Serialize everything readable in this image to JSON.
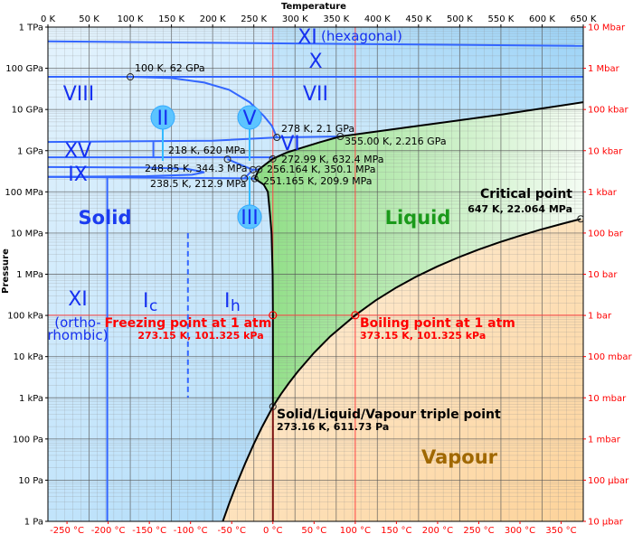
{
  "chart_data": {
    "type": "line",
    "title": "",
    "xlabel": "Temperature",
    "ylabel": "Pressure",
    "x_unit": "K",
    "xlim": [
      0,
      650
    ],
    "ylim_pa": [
      1,
      1000000000000.0
    ],
    "y_scale": "log",
    "grid": true,
    "top_ticks": [
      "0 K",
      "50 K",
      "100 K",
      "150 K",
      "200 K",
      "250 K",
      "300 K",
      "350 K",
      "400 K",
      "450 K",
      "500 K",
      "550 K",
      "600 K",
      "650 K"
    ],
    "top_tick_values": [
      0,
      50,
      100,
      150,
      200,
      250,
      300,
      350,
      400,
      450,
      500,
      550,
      600,
      650
    ],
    "bottom_ticks": [
      "-250 °C",
      "-200 °C",
      "-150 °C",
      "-100 °C",
      "-50 °C",
      "0 °C",
      "50 °C",
      "100 °C",
      "150 °C",
      "200 °C",
      "250 °C",
      "300 °C",
      "350 °C"
    ],
    "bottom_tick_values_c": [
      -250,
      -200,
      -150,
      -100,
      -50,
      0,
      50,
      100,
      150,
      200,
      250,
      300,
      350
    ],
    "left_ticks": [
      "1 Pa",
      "10 Pa",
      "100 Pa",
      "1 kPa",
      "10 kPa",
      "100 kPa",
      "1 MPa",
      "10 MPa",
      "100 MPa",
      "1 GPa",
      "10 GPa",
      "100 GPa",
      "1 TPa"
    ],
    "right_ticks": [
      "10 µbar",
      "100 µbar",
      "1 mbar",
      "10 mbar",
      "100 mbar",
      "1 bar",
      "10 bar",
      "100 bar",
      "1 kbar",
      "10 kbar",
      "100 kbar",
      "1 Mbar",
      "10 Mbar"
    ],
    "curves": {
      "vaporization": [
        [
          273.16,
          611.73
        ],
        [
          283,
          1228
        ],
        [
          293,
          2339
        ],
        [
          303,
          4246
        ],
        [
          323,
          12350
        ],
        [
          343,
          31200
        ],
        [
          373.15,
          101325
        ],
        [
          398,
          232000
        ],
        [
          423,
          476000
        ],
        [
          448,
          892000
        ],
        [
          473,
          1555000
        ],
        [
          498,
          2548000
        ],
        [
          523,
          3977000
        ],
        [
          548,
          5942000
        ],
        [
          573,
          8588000
        ],
        [
          598,
          12060000
        ],
        [
          623,
          16530000
        ],
        [
          647,
          22064000
        ]
      ],
      "sublimation": [
        [
          212.4,
          1
        ],
        [
          220,
          2.7
        ],
        [
          230,
          8.9
        ],
        [
          240,
          27
        ],
        [
          250,
          76
        ],
        [
          260,
          196
        ],
        [
          273.16,
          611.73
        ]
      ],
      "melting_ih": [
        [
          273.16,
          611.73
        ],
        [
          273.15,
          100000
        ],
        [
          272.8,
          1000000
        ],
        [
          271.5,
          10000000
        ],
        [
          269.5,
          30000000
        ],
        [
          267,
          100000000
        ],
        [
          262,
          150000000
        ],
        [
          251.165,
          209900000
        ]
      ],
      "melting_high": [
        [
          251.165,
          209900000
        ],
        [
          256.164,
          350100000
        ],
        [
          272.99,
          632400000
        ],
        [
          290,
          900000000
        ],
        [
          310,
          1200000000
        ],
        [
          330,
          1600000000
        ],
        [
          355,
          2216000000
        ],
        [
          450,
          4000000000
        ],
        [
          550,
          7500000000
        ],
        [
          650,
          15000000000
        ]
      ],
      "viii_vii": [
        [
          100,
          62000000000
        ],
        [
          150,
          58000000000
        ],
        [
          190,
          45000000000
        ],
        [
          220,
          30000000000
        ],
        [
          245,
          15000000000
        ],
        [
          262,
          7000000000
        ],
        [
          272,
          4000000000
        ],
        [
          278,
          2100000000
        ]
      ]
    },
    "colors": {
      "solid": "#a8d8f8",
      "liquid": "#9ee49a",
      "vapour": "#fdd9a6",
      "boundary": "#3366ff",
      "stem": "#33bbff",
      "reference": "#ff3333"
    }
  },
  "axis": {
    "top_title": "Temperature",
    "left_title": "Pressure"
  },
  "regions": {
    "solid": "Solid",
    "liquid": "Liquid",
    "vapour": "Vapour"
  },
  "phases": {
    "xi_hex": "XI",
    "hexagonal": "(hexagonal)",
    "x": "X",
    "viii": "VIII",
    "vii": "VII",
    "xv": "XV",
    "vi": "VI",
    "ix": "IX",
    "ii": "II",
    "v": "V",
    "iii": "III",
    "xi_orth": "XI",
    "ortho": "(ortho-",
    "rhombic": "rhombic)",
    "ic_main": "I",
    "ic_sub": "c",
    "ih_main": "I",
    "ih_sub": "h"
  },
  "points": {
    "p100k": "100 K, 62 GPa",
    "p278": "278 K, 2.1 GPa",
    "p355": "355.00 K, 2.216 GPa",
    "p218": "218 K, 620 MPa",
    "p272": "272.99 K, 632.4 MPa",
    "p248": "248.85 K, 344.3 MPa",
    "p256": "256.164 K, 350.1 MPa",
    "p238": "238.5 K, 212.9 MPa",
    "p251": "251.165 K, 209.9 MPa"
  },
  "annotations": {
    "freezing_title": "Freezing point at 1 atm",
    "freezing_value": "273.15 K, 101.325 kPa",
    "boiling_title": "Boiling point at 1 atm",
    "boiling_value": "373.15 K, 101.325 kPa",
    "critical_title": "Critical point",
    "critical_value": "647 K, 22.064 MPa",
    "triple_title": "Solid/Liquid/Vapour triple point",
    "triple_value": "273.16 K, 611.73 Pa"
  }
}
